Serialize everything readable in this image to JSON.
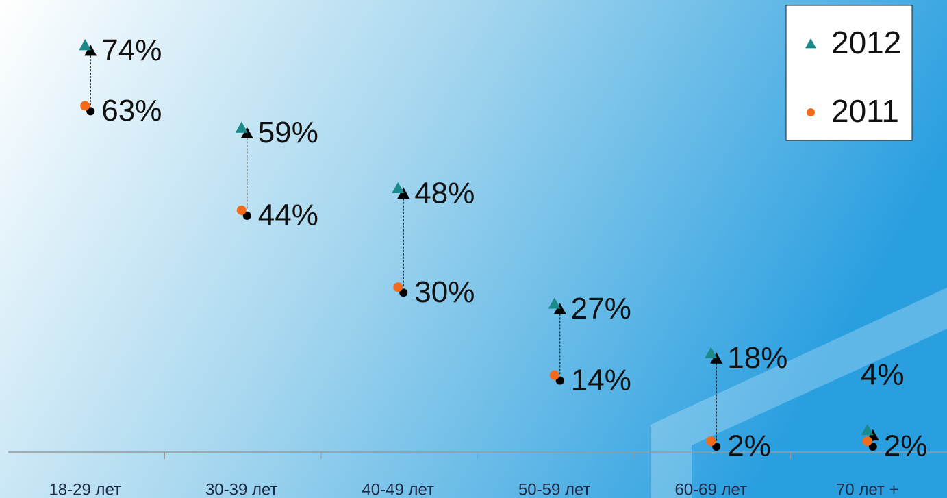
{
  "chart_data": {
    "type": "dot",
    "categories": [
      "18-29 лет",
      "30-39 лет",
      "40-49 лет",
      "50-59 лет",
      "60-69 лет",
      "70 лет +"
    ],
    "series": [
      {
        "name": "2012",
        "color": "#1a8a8a",
        "marker": "triangle",
        "values": [
          74,
          59,
          48,
          27,
          18,
          4
        ],
        "value_labels": [
          "74%",
          "59%",
          "48%",
          "27%",
          "18%",
          "4%"
        ]
      },
      {
        "name": "2011",
        "color": "#f26b1d",
        "marker": "circle",
        "values": [
          63,
          44,
          30,
          14,
          2,
          2
        ],
        "value_labels": [
          "63%",
          "44%",
          "30%",
          "14%",
          "2%",
          "2%"
        ]
      }
    ],
    "ylim": [
      0,
      80
    ],
    "legend": "upper right"
  }
}
